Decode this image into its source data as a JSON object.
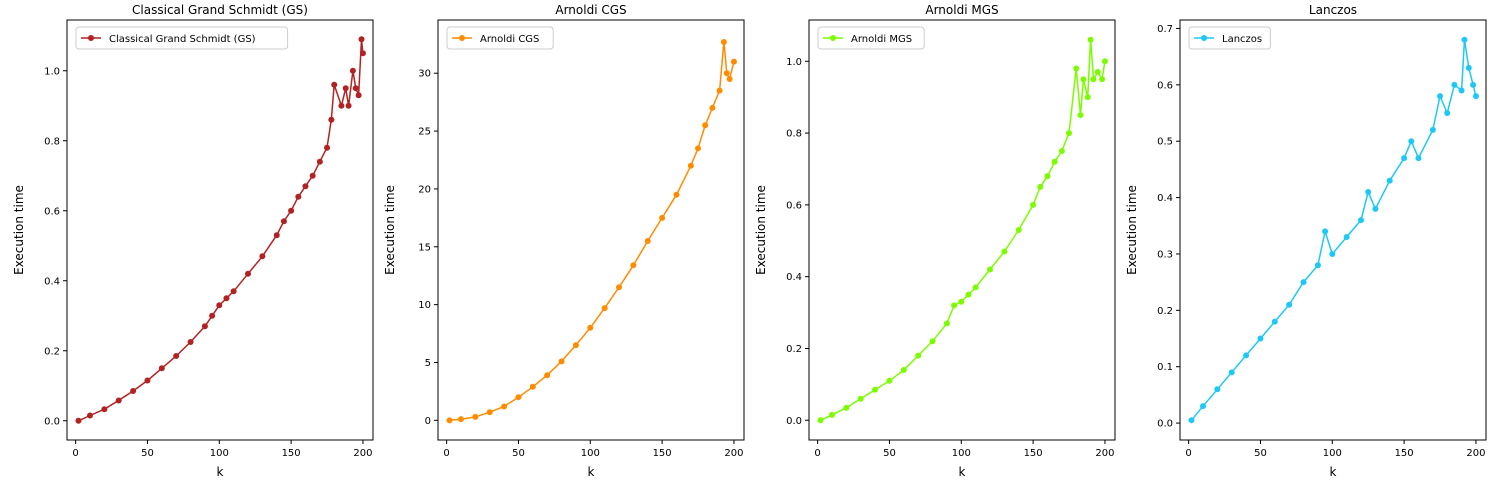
{
  "chart_data": [
    {
      "type": "line",
      "title": "Classical Grand Schmidt (GS)",
      "xlabel": "k",
      "ylabel": "Execution time",
      "xlim": [
        -6,
        207
      ],
      "ylim": [
        -0.055,
        1.145
      ],
      "xticks": [
        "0",
        "50",
        "100",
        "150",
        "200"
      ],
      "yticks": [
        "0.0",
        "0.2",
        "0.4",
        "0.6",
        "0.8",
        "1.0"
      ],
      "legend_position": "top-left",
      "grid": false,
      "series": [
        {
          "name": "Classical Grand Schmidt (GS)",
          "color": "#b22222",
          "marker": "circle",
          "x": [
            2,
            10,
            20,
            30,
            40,
            50,
            60,
            70,
            80,
            90,
            95,
            100,
            105,
            110,
            120,
            130,
            140,
            145,
            150,
            155,
            160,
            165,
            170,
            175,
            178,
            180,
            185,
            188,
            190,
            193,
            195,
            197,
            199,
            200
          ],
          "y": [
            0.0,
            0.015,
            0.033,
            0.058,
            0.085,
            0.115,
            0.15,
            0.185,
            0.225,
            0.27,
            0.3,
            0.33,
            0.35,
            0.37,
            0.42,
            0.47,
            0.53,
            0.57,
            0.6,
            0.64,
            0.67,
            0.7,
            0.74,
            0.78,
            0.86,
            0.96,
            0.9,
            0.95,
            0.9,
            1.0,
            0.95,
            0.93,
            1.09,
            1.05
          ]
        }
      ]
    },
    {
      "type": "line",
      "title": "Arnoldi CGS",
      "xlabel": "k",
      "ylabel": "Execution time",
      "xlim": [
        -6,
        207
      ],
      "ylim": [
        -1.7,
        34.6
      ],
      "xticks": [
        "0",
        "50",
        "100",
        "150",
        "200"
      ],
      "yticks": [
        "0",
        "5",
        "10",
        "15",
        "20",
        "25",
        "30"
      ],
      "legend_position": "top-left",
      "grid": false,
      "series": [
        {
          "name": "Arnoldi CGS",
          "color": "#ff8c00",
          "marker": "circle",
          "x": [
            2,
            10,
            20,
            30,
            40,
            50,
            60,
            70,
            80,
            90,
            100,
            110,
            120,
            130,
            140,
            150,
            160,
            170,
            175,
            180,
            185,
            190,
            193,
            195,
            197,
            200
          ],
          "y": [
            0.0,
            0.1,
            0.3,
            0.7,
            1.2,
            2.0,
            2.9,
            3.9,
            5.1,
            6.5,
            8.0,
            9.7,
            11.5,
            13.4,
            15.5,
            17.5,
            19.5,
            22.0,
            23.5,
            25.5,
            27.0,
            28.5,
            32.7,
            30.0,
            29.5,
            31.0
          ]
        }
      ]
    },
    {
      "type": "line",
      "title": "Arnoldi MGS",
      "xlabel": "k",
      "ylabel": "Execution time",
      "xlim": [
        -6,
        207
      ],
      "ylim": [
        -0.055,
        1.115
      ],
      "xticks": [
        "0",
        "50",
        "100",
        "150",
        "200"
      ],
      "yticks": [
        "0.0",
        "0.2",
        "0.4",
        "0.6",
        "0.8",
        "1.0"
      ],
      "legend_position": "top-left",
      "grid": false,
      "series": [
        {
          "name": "Arnoldi MGS",
          "color": "#7cfc00",
          "marker": "circle",
          "x": [
            2,
            10,
            20,
            30,
            40,
            50,
            60,
            70,
            80,
            90,
            95,
            100,
            105,
            110,
            120,
            130,
            140,
            150,
            155,
            160,
            165,
            170,
            175,
            180,
            183,
            185,
            188,
            190,
            192,
            195,
            198,
            200
          ],
          "y": [
            0.0,
            0.015,
            0.035,
            0.06,
            0.085,
            0.11,
            0.14,
            0.18,
            0.22,
            0.27,
            0.32,
            0.33,
            0.35,
            0.37,
            0.42,
            0.47,
            0.53,
            0.6,
            0.65,
            0.68,
            0.72,
            0.75,
            0.8,
            0.98,
            0.85,
            0.95,
            0.9,
            1.06,
            0.95,
            0.97,
            0.95,
            1.0
          ]
        }
      ]
    },
    {
      "type": "line",
      "title": "Lanczos",
      "xlabel": "k",
      "ylabel": "Execution time",
      "xlim": [
        -6,
        207
      ],
      "ylim": [
        -0.03,
        0.715
      ],
      "xticks": [
        "0",
        "50",
        "100",
        "150",
        "200"
      ],
      "yticks": [
        "0.0",
        "0.1",
        "0.2",
        "0.3",
        "0.4",
        "0.5",
        "0.6",
        "0.7"
      ],
      "legend_position": "top-left",
      "grid": false,
      "series": [
        {
          "name": "Lanczos",
          "color": "#1ec8f5",
          "marker": "circle",
          "x": [
            2,
            10,
            20,
            30,
            40,
            50,
            60,
            70,
            80,
            90,
            95,
            100,
            110,
            120,
            125,
            130,
            140,
            150,
            155,
            160,
            170,
            175,
            180,
            185,
            190,
            192,
            195,
            198,
            200
          ],
          "y": [
            0.005,
            0.03,
            0.06,
            0.09,
            0.12,
            0.15,
            0.18,
            0.21,
            0.25,
            0.28,
            0.34,
            0.3,
            0.33,
            0.36,
            0.41,
            0.38,
            0.43,
            0.47,
            0.5,
            0.47,
            0.52,
            0.58,
            0.55,
            0.6,
            0.59,
            0.68,
            0.63,
            0.6,
            0.58
          ]
        }
      ]
    }
  ]
}
